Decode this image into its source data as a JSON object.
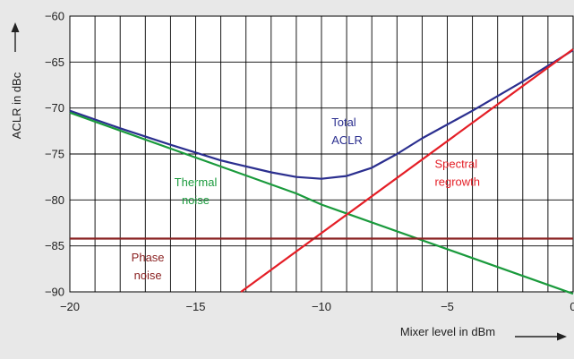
{
  "chart_data": {
    "type": "line",
    "xlabel": "Mixer level in dBm",
    "ylabel": "ACLR in dBc",
    "xlim": [
      -20,
      0
    ],
    "ylim": [
      -90,
      -60
    ],
    "x_ticks": [
      -20,
      -15,
      -10,
      -5,
      0
    ],
    "x_tick_labels": [
      "−20",
      "−15",
      "−10",
      "−5",
      "0"
    ],
    "y_ticks": [
      -60,
      -65,
      -70,
      -75,
      -80,
      -85,
      -90
    ],
    "y_tick_labels": [
      "−60",
      "−65",
      "−70",
      "−75",
      "−80",
      "−85",
      "−90"
    ],
    "grid": true,
    "series": [
      {
        "name": "Total ACLR",
        "color": "#2b2f8f",
        "x": [
          -20,
          -18,
          -16,
          -14,
          -12,
          -11,
          -10,
          -9,
          -8,
          -7,
          -6,
          -4,
          -2,
          0
        ],
        "y": [
          -70.3,
          -72.2,
          -74.0,
          -75.7,
          -77.0,
          -77.5,
          -77.7,
          -77.4,
          -76.5,
          -75.0,
          -73.3,
          -70.3,
          -67.1,
          -63.7
        ]
      },
      {
        "name": "Thermal noise",
        "color": "#1a9a3c",
        "x": [
          -20,
          -11,
          -10,
          0
        ],
        "y": [
          -70.5,
          -79.3,
          -80.5,
          -90.2
        ]
      },
      {
        "name": "Spectral regrowth",
        "color": "#e41e26",
        "x": [
          -13.2,
          0
        ],
        "y": [
          -90,
          -63.6
        ]
      },
      {
        "name": "Phase noise",
        "color": "#8b2323",
        "x": [
          -20,
          0
        ],
        "y": [
          -84.2,
          -84.2
        ]
      }
    ],
    "annotations": [
      {
        "lines": [
          "Total",
          "ACLR"
        ],
        "color": "#2b2f8f",
        "x": -9.6,
        "y": -72.0,
        "anchor": "start"
      },
      {
        "lines": [
          "Spectral",
          "regrowth"
        ],
        "color": "#e41e26",
        "x": -5.5,
        "y": -76.5,
        "anchor": "start"
      },
      {
        "lines": [
          "Thermal",
          "noise"
        ],
        "color": "#1a9a3c",
        "x": -15.0,
        "y": -78.5,
        "anchor": "middle"
      },
      {
        "lines": [
          "Phase",
          "noise"
        ],
        "color": "#8b2323",
        "x": -16.9,
        "y": -86.7,
        "anchor": "middle"
      }
    ]
  }
}
